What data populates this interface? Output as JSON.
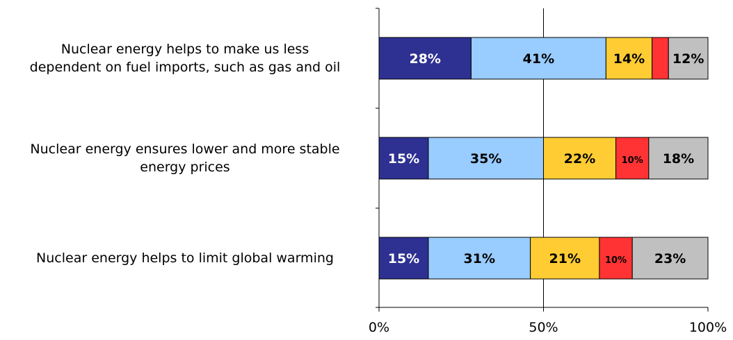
{
  "chart_data": {
    "type": "bar",
    "orientation": "horizontal",
    "stacked": true,
    "categories": [
      "Nuclear energy helps to make us less dependent on fuel imports, such as gas and oil",
      "Nuclear energy ensures lower and more stable energy prices",
      "Nuclear energy helps to limit global warming"
    ],
    "category_lines": [
      [
        "Nuclear energy helps to make us less",
        "dependent on fuel imports, such as gas and oil"
      ],
      [
        "Nuclear energy ensures lower and more stable",
        "energy prices"
      ],
      [
        "Nuclear energy helps to limit global warming"
      ]
    ],
    "series": [
      {
        "color": "#2e3192",
        "label_color": "#ffffff",
        "values": [
          28,
          15,
          15
        ]
      },
      {
        "color": "#99ccff",
        "label_color": "#000000",
        "values": [
          41,
          35,
          31
        ]
      },
      {
        "color": "#ffcc33",
        "label_color": "#000000",
        "values": [
          14,
          22,
          21
        ]
      },
      {
        "color": "#ff3333",
        "label_color": "#000000",
        "values": [
          5,
          10,
          10
        ]
      },
      {
        "color": "#c0c0c0",
        "label_color": "#000000",
        "values": [
          12,
          18,
          23
        ]
      }
    ],
    "data_labels": [
      [
        "28%",
        "15%",
        "15%"
      ],
      [
        "41%",
        "35%",
        "31%"
      ],
      [
        "14%",
        "22%",
        "21%"
      ],
      [
        "",
        "10%",
        "10%"
      ],
      [
        "12%",
        "18%",
        "23%"
      ]
    ],
    "xaxis": {
      "ticks": [
        0,
        50,
        100
      ],
      "tick_labels": [
        "0%",
        "50%",
        "100%"
      ],
      "range": [
        0,
        100
      ]
    },
    "gridlines": [
      50
    ],
    "title": "",
    "xlabel": "",
    "ylabel": ""
  }
}
